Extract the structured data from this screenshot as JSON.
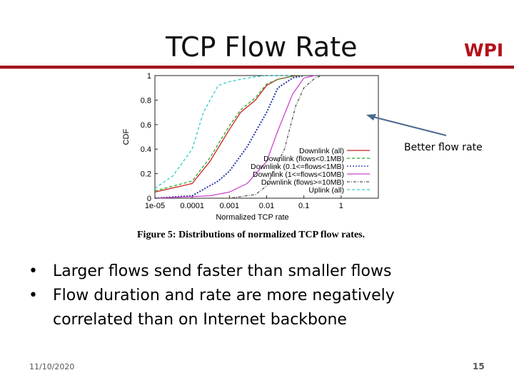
{
  "slide": {
    "title": "TCP Flow Rate",
    "logo_text": "WPI",
    "accent_color": "#a3141d",
    "annotation": "Better flow rate",
    "bullets": [
      "Larger flows send faster than smaller flows",
      "Flow duration and rate are more negatively correlated than on Internet backbone"
    ],
    "date": "11/10/2020",
    "page_number": "15"
  },
  "chart_data": {
    "type": "line",
    "title": "",
    "caption": "Figure 5: Distributions of normalized TCP flow rates.",
    "xlabel": "Normalized TCP rate",
    "ylabel": "CDF",
    "x_scale": "log",
    "xlim": [
      1e-05,
      10
    ],
    "ylim": [
      0,
      1
    ],
    "x_ticks": [
      "1e-05",
      "0.0001",
      "0.001",
      "0.01",
      "0.1",
      "1"
    ],
    "y_ticks": [
      "0",
      "0.2",
      "0.4",
      "0.6",
      "0.8",
      "1"
    ],
    "legend_position": "bottom-right",
    "series": [
      {
        "name": "Downlink (all)",
        "color": "#cc2222",
        "dash": "solid",
        "x": [
          1e-05,
          0.0001,
          0.0003,
          0.001,
          0.002,
          0.005,
          0.01,
          0.02,
          0.05,
          0.1
        ],
        "y": [
          0.05,
          0.12,
          0.3,
          0.56,
          0.7,
          0.8,
          0.92,
          0.97,
          0.995,
          1.0
        ]
      },
      {
        "name": "Downlink (flows<0.1MB)",
        "color": "#22aa22",
        "dash": "dashed",
        "x": [
          1e-05,
          0.0001,
          0.0003,
          0.001,
          0.002,
          0.005,
          0.01,
          0.02,
          0.05,
          0.1
        ],
        "y": [
          0.06,
          0.14,
          0.33,
          0.59,
          0.72,
          0.82,
          0.93,
          0.97,
          0.995,
          1.0
        ]
      },
      {
        "name": "Downlink (0.1<=flows<1MB)",
        "color": "#2233aa",
        "dash": "dotted",
        "x": [
          1e-05,
          0.0001,
          0.0005,
          0.001,
          0.003,
          0.01,
          0.02,
          0.05,
          0.1
        ],
        "y": [
          0.0,
          0.02,
          0.14,
          0.22,
          0.42,
          0.7,
          0.9,
          0.98,
          1.0
        ]
      },
      {
        "name": "Downlink (1<=flows<10MB)",
        "color": "#cc44cc",
        "dash": "solid",
        "x": [
          1e-05,
          0.0003,
          0.001,
          0.003,
          0.01,
          0.02,
          0.05,
          0.1,
          0.2
        ],
        "y": [
          0.0,
          0.02,
          0.05,
          0.12,
          0.3,
          0.55,
          0.85,
          0.98,
          1.0
        ]
      },
      {
        "name": "Downlink (flows>=10MB)",
        "color": "#555555",
        "dash": "dashdot",
        "x": [
          1e-05,
          0.001,
          0.005,
          0.01,
          0.03,
          0.06,
          0.1,
          0.2,
          0.3
        ],
        "y": [
          0.0,
          0.0,
          0.03,
          0.1,
          0.4,
          0.75,
          0.9,
          0.98,
          1.0
        ]
      },
      {
        "name": "Uplink (all)",
        "color": "#33cccc",
        "dash": "dashed",
        "x": [
          1e-05,
          3e-05,
          0.0001,
          0.0002,
          0.0005,
          0.001,
          0.002,
          0.005,
          0.01,
          0.05
        ],
        "y": [
          0.08,
          0.18,
          0.4,
          0.7,
          0.92,
          0.95,
          0.97,
          0.99,
          1.0,
          1.0
        ]
      }
    ]
  }
}
